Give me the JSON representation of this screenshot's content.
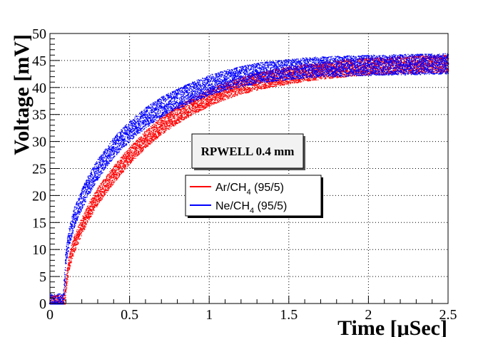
{
  "chart_data": {
    "type": "scatter",
    "title": "",
    "xlabel": "Time [μSec]",
    "ylabel": "Voltage [mV]",
    "xlim": [
      0,
      2.5
    ],
    "ylim": [
      0,
      50
    ],
    "grid": true,
    "x_ticks": [
      "0",
      "0.5",
      "1",
      "1.5",
      "2",
      "2.5"
    ],
    "y_ticks": [
      "0",
      "5",
      "10",
      "15",
      "20",
      "25",
      "30",
      "35",
      "40",
      "45",
      "50"
    ],
    "annotation": "RPWELL 0.4 mm",
    "legend_position": "center",
    "series": [
      {
        "name": "Ar/CH4 (95/5)",
        "label_main": "Ar/CH",
        "label_sub": "4",
        "label_tail": " (95/5)",
        "color": "#ff0000",
        "noise_band": 1.6,
        "x": [
          0,
          0.05,
          0.09,
          0.1,
          0.12,
          0.15,
          0.2,
          0.25,
          0.3,
          0.4,
          0.5,
          0.6,
          0.7,
          0.8,
          0.9,
          1.0,
          1.1,
          1.2,
          1.3,
          1.4,
          1.5,
          1.6,
          1.8,
          2.0,
          2.2,
          2.4,
          2.5
        ],
        "y": [
          0,
          0,
          0,
          4,
          8,
          11,
          14.5,
          17.5,
          20,
          24,
          27.5,
          30.5,
          33,
          35,
          36.7,
          38.2,
          39.4,
          40.4,
          41.2,
          41.8,
          42.3,
          42.8,
          43.5,
          44,
          44.2,
          44.4,
          44.5
        ]
      },
      {
        "name": "Ne/CH4 (95/5)",
        "label_main": "Ne/CH",
        "label_sub": "4",
        "label_tail": " (95/5)",
        "color": "#0000ff",
        "noise_band": 1.9,
        "x": [
          0,
          0.05,
          0.08,
          0.1,
          0.12,
          0.15,
          0.2,
          0.25,
          0.3,
          0.4,
          0.5,
          0.6,
          0.7,
          0.8,
          0.9,
          1.0,
          1.1,
          1.2,
          1.3,
          1.4,
          1.5,
          1.6,
          1.8,
          2.0,
          2.2,
          2.4,
          2.5
        ],
        "y": [
          0,
          0,
          0,
          9,
          12.5,
          16,
          19.5,
          22.5,
          25,
          29,
          32,
          34.5,
          36.5,
          38,
          39.3,
          40.5,
          41.4,
          42.1,
          42.7,
          43.1,
          43.4,
          43.7,
          44,
          44.2,
          44.3,
          44.4,
          44.5
        ]
      }
    ]
  }
}
